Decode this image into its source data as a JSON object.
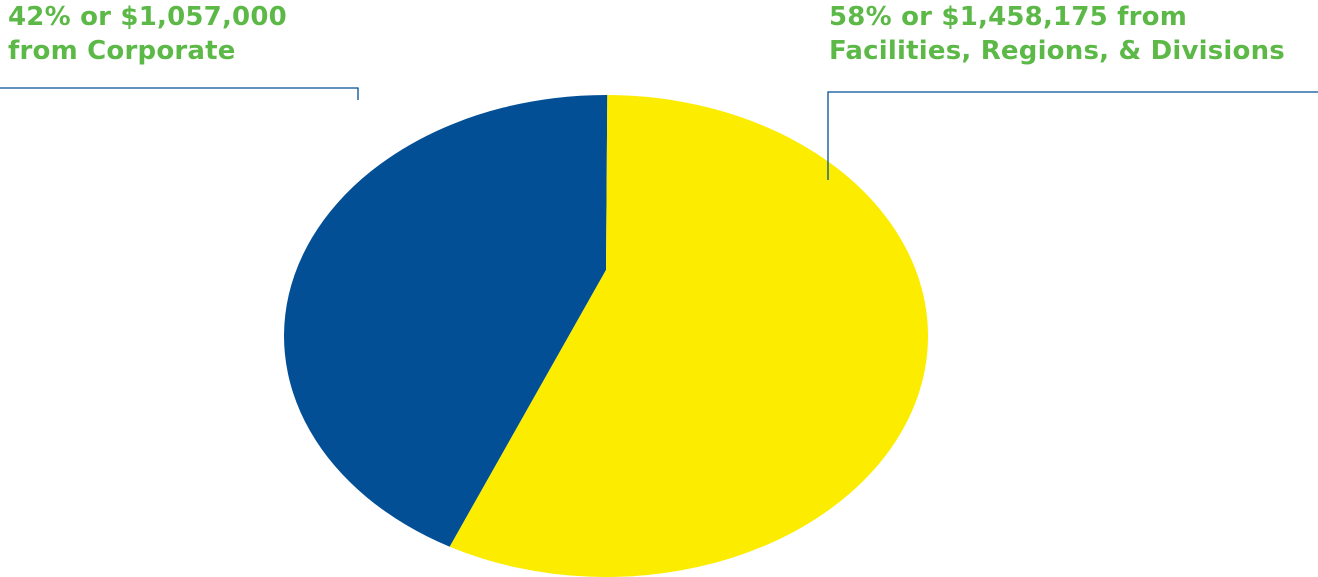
{
  "chart_data": {
    "type": "pie",
    "title": "",
    "slices": [
      {
        "label_lines": [
          "42% or $1,057,000",
          "from Corporate"
        ],
        "percent": 42,
        "amount": 1057000,
        "color": "#034f96"
      },
      {
        "label_lines": [
          "58% or $1,458,175 from",
          "Facilities, Regions, & Divisions"
        ],
        "percent": 58,
        "amount": 1458175,
        "color": "#fbec00"
      }
    ],
    "label_color": "#5cb947",
    "leader_color": "#034f96",
    "legend": "none"
  }
}
